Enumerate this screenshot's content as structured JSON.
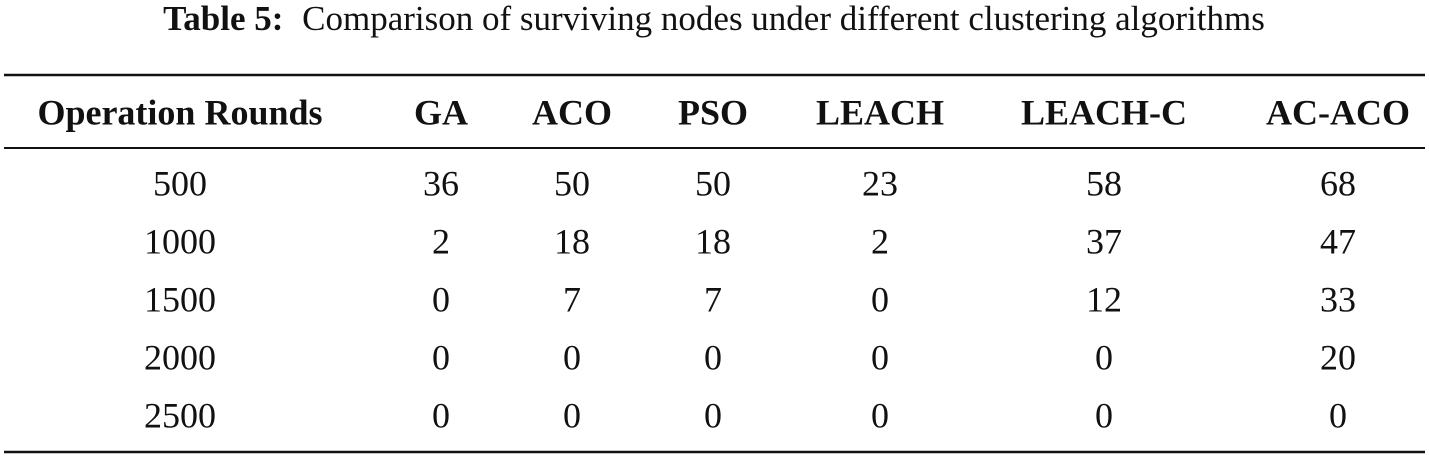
{
  "caption": {
    "label": "Table 5:",
    "text": "Comparison of surviving nodes under different clustering algorithms"
  },
  "table": {
    "headers": [
      "Operation Rounds",
      "GA",
      "ACO",
      "PSO",
      "LEACH",
      "LEACH-C",
      "AC-ACO"
    ],
    "rows": [
      [
        500,
        36,
        50,
        50,
        23,
        58,
        68
      ],
      [
        1000,
        2,
        18,
        18,
        2,
        37,
        47
      ],
      [
        1500,
        0,
        7,
        7,
        0,
        12,
        33
      ],
      [
        2000,
        0,
        0,
        0,
        0,
        0,
        20
      ],
      [
        2500,
        0,
        0,
        0,
        0,
        0,
        0
      ]
    ]
  }
}
